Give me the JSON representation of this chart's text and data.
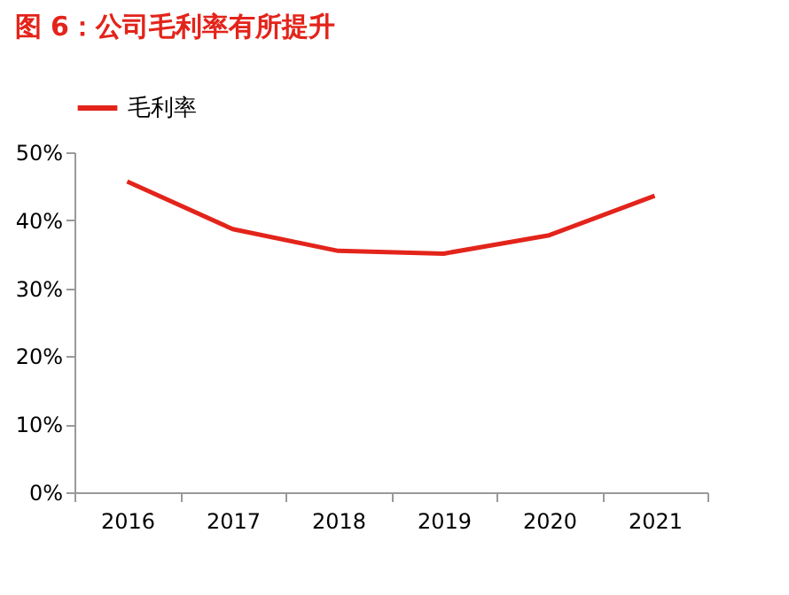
{
  "chart_data": {
    "type": "line",
    "title": "图 6：公司毛利率有所提升",
    "categories": [
      "2016",
      "2017",
      "2018",
      "2019",
      "2020",
      "2021"
    ],
    "series": [
      {
        "name": "毛利率",
        "color": "#e3241b",
        "values": [
          45.7,
          38.7,
          35.5,
          35.1,
          37.8,
          43.6
        ]
      }
    ],
    "ylim": [
      0,
      50
    ],
    "yticks": [
      {
        "value": 0,
        "label": "0%"
      },
      {
        "value": 10,
        "label": "10%"
      },
      {
        "value": 20,
        "label": "20%"
      },
      {
        "value": 30,
        "label": "30%"
      },
      {
        "value": 40,
        "label": "40%"
      },
      {
        "value": 50,
        "label": "50%"
      }
    ],
    "grid": false,
    "legend": "top",
    "marker": "none",
    "line_style": "solid"
  }
}
